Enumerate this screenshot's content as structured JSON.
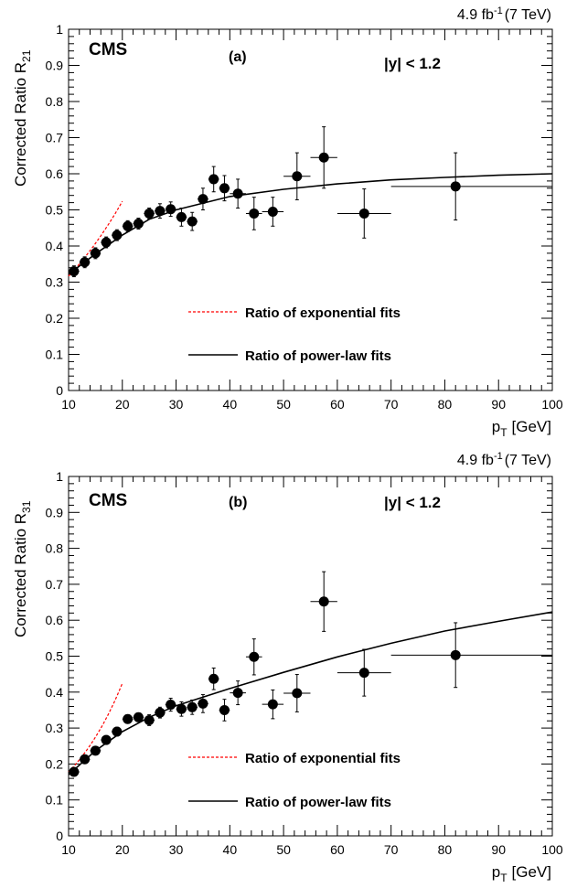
{
  "chart_data": [
    {
      "type": "scatter",
      "panel_label": "(a)",
      "experiment": "CMS",
      "rapidity_cut": "|y| < 1.2",
      "lumi_value": "4.9 fb",
      "lumi_exponent": "-1",
      "lumi_energy": "(7 TeV)",
      "ylabel_main": "Corrected Ratio R",
      "ylabel_sub": "21",
      "xlabel_main": "p",
      "xlabel_sub": "T",
      "xlabel_unit": "[GeV]",
      "xlim": [
        10,
        100
      ],
      "ylim": [
        0,
        1
      ],
      "x_ticks": [
        10,
        20,
        30,
        40,
        50,
        60,
        70,
        80,
        90,
        100
      ],
      "y_ticks": [
        0,
        0.1,
        0.2,
        0.3,
        0.4,
        0.5,
        0.6,
        0.7,
        0.8,
        0.9,
        1
      ],
      "legend": [
        {
          "label": "Ratio of exponential fits",
          "style": "dashed",
          "color": "#ff0000"
        },
        {
          "label": "Ratio of power-law fits",
          "style": "solid",
          "color": "#000000"
        }
      ],
      "points": [
        {
          "x": 11,
          "y": 0.33,
          "xerr": 1,
          "yerr": 0.015
        },
        {
          "x": 13,
          "y": 0.355,
          "xerr": 1,
          "yerr": 0.015
        },
        {
          "x": 15,
          "y": 0.38,
          "xerr": 1,
          "yerr": 0.015
        },
        {
          "x": 17,
          "y": 0.41,
          "xerr": 1,
          "yerr": 0.015
        },
        {
          "x": 19,
          "y": 0.43,
          "xerr": 1,
          "yerr": 0.015
        },
        {
          "x": 21,
          "y": 0.455,
          "xerr": 1,
          "yerr": 0.015
        },
        {
          "x": 23,
          "y": 0.462,
          "xerr": 1,
          "yerr": 0.015
        },
        {
          "x": 25,
          "y": 0.49,
          "xerr": 1,
          "yerr": 0.015
        },
        {
          "x": 27,
          "y": 0.497,
          "xerr": 1,
          "yerr": 0.02
        },
        {
          "x": 29,
          "y": 0.502,
          "xerr": 1,
          "yerr": 0.02
        },
        {
          "x": 31,
          "y": 0.48,
          "xerr": 1,
          "yerr": 0.025
        },
        {
          "x": 33,
          "y": 0.468,
          "xerr": 1,
          "yerr": 0.025
        },
        {
          "x": 35,
          "y": 0.53,
          "xerr": 1,
          "yerr": 0.03
        },
        {
          "x": 37,
          "y": 0.585,
          "xerr": 1,
          "yerr": 0.035
        },
        {
          "x": 39,
          "y": 0.56,
          "xerr": 1,
          "yerr": 0.035
        },
        {
          "x": 41.5,
          "y": 0.545,
          "xerr": 1.5,
          "yerr": 0.04
        },
        {
          "x": 44.5,
          "y": 0.49,
          "xerr": 1.5,
          "yerr": 0.045
        },
        {
          "x": 48,
          "y": 0.495,
          "xerr": 2,
          "yerr": 0.04
        },
        {
          "x": 52.5,
          "y": 0.593,
          "xerr": 2.5,
          "yerr": 0.065
        },
        {
          "x": 57.5,
          "y": 0.645,
          "xerr": 2.5,
          "yerr": 0.085
        },
        {
          "x": 65,
          "y": 0.49,
          "xerr": 5,
          "yerr": 0.068
        },
        {
          "x": 82,
          "y": 0.565,
          "xerr": 12,
          "xerr_hi": 18,
          "yerr": 0.093
        }
      ],
      "exp_fit": {
        "xrange": [
          10,
          20
        ],
        "a": 0.1915,
        "b": 0.0503
      },
      "power_fit": {
        "xrange": [
          10,
          100
        ],
        "points": [
          [
            10,
            0.322
          ],
          [
            15,
            0.378
          ],
          [
            20,
            0.43
          ],
          [
            25,
            0.474
          ],
          [
            30,
            0.5
          ],
          [
            40,
            0.537
          ],
          [
            50,
            0.557
          ],
          [
            60,
            0.572
          ],
          [
            70,
            0.583
          ],
          [
            80,
            0.59
          ],
          [
            90,
            0.596
          ],
          [
            100,
            0.6
          ]
        ]
      }
    },
    {
      "type": "scatter",
      "panel_label": "(b)",
      "experiment": "CMS",
      "rapidity_cut": "|y| < 1.2",
      "lumi_value": "4.9 fb",
      "lumi_exponent": "-1",
      "lumi_energy": "(7 TeV)",
      "ylabel_main": "Corrected Ratio R",
      "ylabel_sub": "31",
      "xlabel_main": "p",
      "xlabel_sub": "T",
      "xlabel_unit": "[GeV]",
      "xlim": [
        10,
        100
      ],
      "ylim": [
        0,
        1
      ],
      "x_ticks": [
        10,
        20,
        30,
        40,
        50,
        60,
        70,
        80,
        90,
        100
      ],
      "y_ticks": [
        0,
        0.1,
        0.2,
        0.3,
        0.4,
        0.5,
        0.6,
        0.7,
        0.8,
        0.9,
        1
      ],
      "legend": [
        {
          "label": "Ratio of exponential fits",
          "style": "dashed",
          "color": "#ff0000"
        },
        {
          "label": "Ratio of power-law fits",
          "style": "solid",
          "color": "#000000"
        }
      ],
      "points": [
        {
          "x": 11,
          "y": 0.178,
          "xerr": 1,
          "yerr": 0.01
        },
        {
          "x": 13,
          "y": 0.213,
          "xerr": 1,
          "yerr": 0.01
        },
        {
          "x": 15,
          "y": 0.237,
          "xerr": 1,
          "yerr": 0.01
        },
        {
          "x": 17,
          "y": 0.267,
          "xerr": 1,
          "yerr": 0.012
        },
        {
          "x": 19,
          "y": 0.29,
          "xerr": 1,
          "yerr": 0.012
        },
        {
          "x": 21,
          "y": 0.325,
          "xerr": 1,
          "yerr": 0.012
        },
        {
          "x": 23,
          "y": 0.33,
          "xerr": 1,
          "yerr": 0.012
        },
        {
          "x": 25,
          "y": 0.322,
          "xerr": 1,
          "yerr": 0.015
        },
        {
          "x": 27,
          "y": 0.343,
          "xerr": 1,
          "yerr": 0.015
        },
        {
          "x": 29,
          "y": 0.365,
          "xerr": 1,
          "yerr": 0.018
        },
        {
          "x": 31,
          "y": 0.353,
          "xerr": 1,
          "yerr": 0.02
        },
        {
          "x": 33,
          "y": 0.358,
          "xerr": 1,
          "yerr": 0.02
        },
        {
          "x": 35,
          "y": 0.368,
          "xerr": 1,
          "yerr": 0.025
        },
        {
          "x": 37,
          "y": 0.437,
          "xerr": 1,
          "yerr": 0.03
        },
        {
          "x": 39,
          "y": 0.35,
          "xerr": 1,
          "yerr": 0.03
        },
        {
          "x": 41.5,
          "y": 0.398,
          "xerr": 1.5,
          "yerr": 0.033
        },
        {
          "x": 44.5,
          "y": 0.498,
          "xerr": 1.5,
          "yerr": 0.05
        },
        {
          "x": 48,
          "y": 0.366,
          "xerr": 2,
          "yerr": 0.04
        },
        {
          "x": 52.5,
          "y": 0.397,
          "xerr": 2.5,
          "yerr": 0.052
        },
        {
          "x": 57.5,
          "y": 0.652,
          "xerr": 2.5,
          "yerr": 0.083
        },
        {
          "x": 65,
          "y": 0.454,
          "xerr": 5,
          "yerr": 0.065
        },
        {
          "x": 82,
          "y": 0.503,
          "xerr": 12,
          "xerr_hi": 18,
          "yerr": 0.09
        }
      ],
      "exp_fit": {
        "xrange": [
          10,
          20
        ],
        "a": 0.0745,
        "b": 0.087
      },
      "power_fit": {
        "xrange": [
          10,
          100
        ],
        "points": [
          [
            10,
            0.17
          ],
          [
            15,
            0.237
          ],
          [
            20,
            0.29
          ],
          [
            25,
            0.33
          ],
          [
            30,
            0.362
          ],
          [
            40,
            0.41
          ],
          [
            50,
            0.455
          ],
          [
            60,
            0.498
          ],
          [
            70,
            0.536
          ],
          [
            80,
            0.57
          ],
          [
            90,
            0.597
          ],
          [
            100,
            0.623
          ]
        ]
      }
    }
  ]
}
